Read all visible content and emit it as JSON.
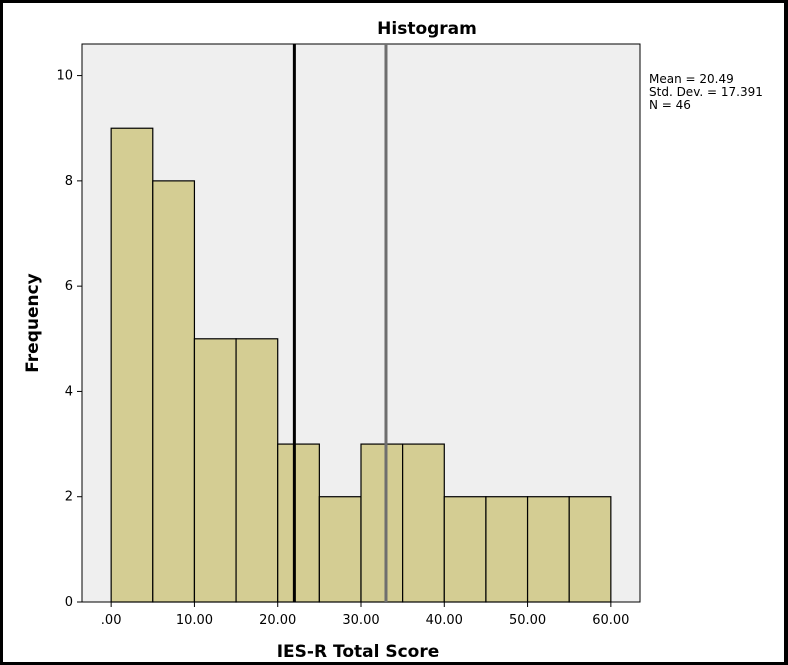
{
  "chart_data": {
    "type": "bar",
    "title": "Histogram",
    "xlabel": "IES-R Total Score",
    "ylabel": "Frequency",
    "bin_edges": [
      0,
      5,
      10,
      15,
      20,
      25,
      30,
      35,
      40,
      45,
      50,
      55,
      60
    ],
    "values": [
      9,
      8,
      5,
      5,
      3,
      2,
      3,
      3,
      2,
      2,
      2,
      2
    ],
    "xlim": [
      -3.5,
      63.5
    ],
    "ylim": [
      0,
      10.6
    ],
    "x_ticks": [
      0,
      10,
      20,
      30,
      40,
      50,
      60
    ],
    "x_tick_labels": [
      ".00",
      "10.00",
      "20.00",
      "30.00",
      "40.00",
      "50.00",
      "60.00"
    ],
    "y_ticks": [
      0,
      2,
      4,
      6,
      8,
      10
    ],
    "y_tick_labels": [
      "0",
      "2",
      "4",
      "6",
      "8",
      "10"
    ],
    "reference_lines": [
      {
        "x": 22,
        "color": "#000000"
      },
      {
        "x": 33,
        "color": "#6e6e6e"
      }
    ],
    "stats": [
      "Mean = 20.49",
      "Std. Dev. = 17.391",
      "N = 46"
    ],
    "stats_placement": "right",
    "grid": false,
    "bar_color": "#d4cd93",
    "plot_background": "#efefef"
  }
}
